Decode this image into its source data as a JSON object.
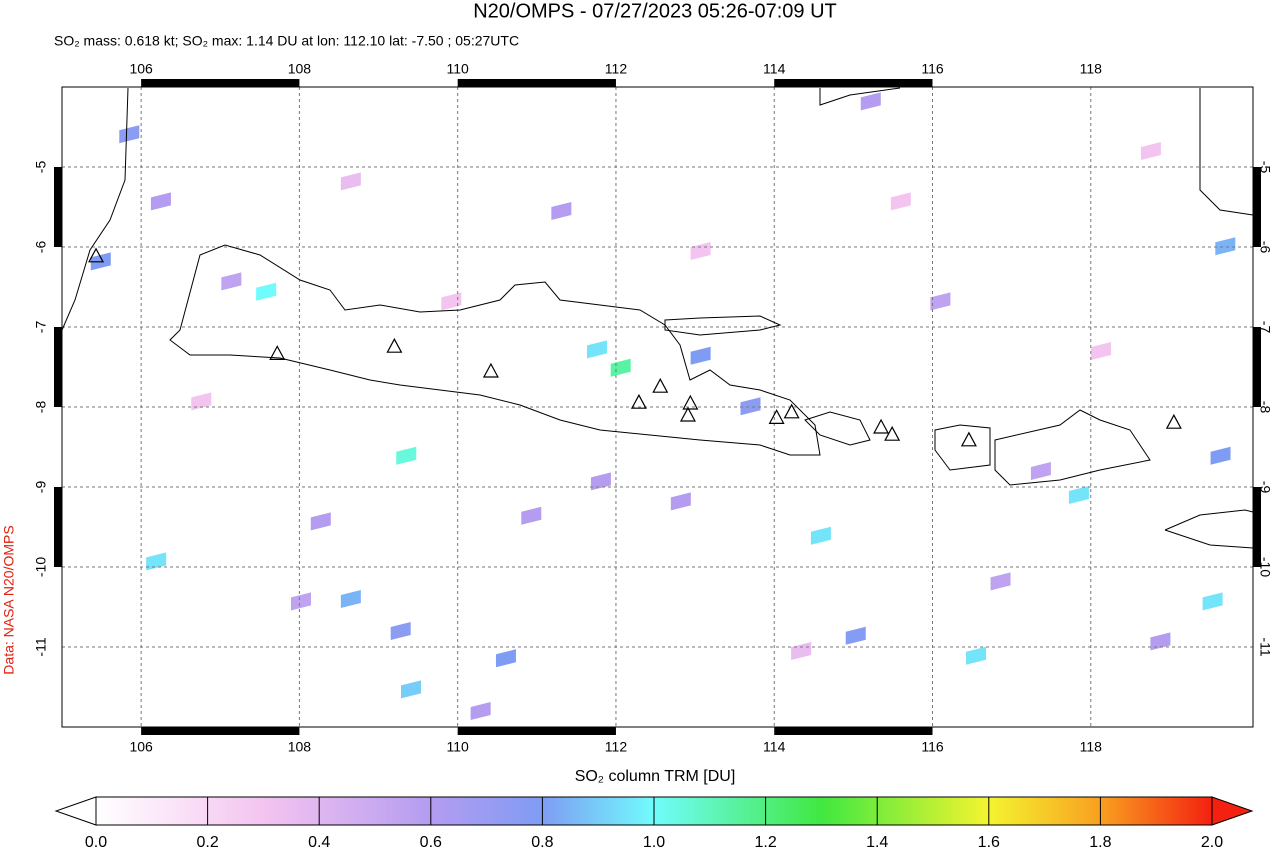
{
  "chart_data": {
    "type": "map",
    "title": "N20/OMPS - 07/27/2023 05:26-07:09 UT",
    "subtitle": "SO₂ mass: 0.618 kt; SO₂ max: 1.14 DU at lon: 112.10 lat: -7.50 ; 05:27UTC",
    "side_label": "Data: NASA N20/OMPS",
    "colorbar_label": "SO₂ column TRM [DU]",
    "xlim": [
      105,
      120.05
    ],
    "ylim": [
      -12,
      -4
    ],
    "xticks": [
      106,
      108,
      110,
      112,
      114,
      116,
      118
    ],
    "yticks": [
      -5,
      -6,
      -7,
      -8,
      -9,
      -10,
      -11
    ],
    "grid": true,
    "colorbar_lim": [
      0,
      2
    ],
    "colorbar_ticks": [
      {
        "value": 0,
        "label": "0.0"
      },
      {
        "value": 0.2,
        "label": "0.2"
      },
      {
        "value": 0.4,
        "label": "0.4"
      },
      {
        "value": 0.6,
        "label": "0.6"
      },
      {
        "value": 0.8,
        "label": "0.8"
      },
      {
        "value": 1,
        "label": "1.0"
      },
      {
        "value": 1.2,
        "label": "1.2"
      },
      {
        "value": 1.4,
        "label": "1.4"
      },
      {
        "value": 1.6,
        "label": "1.6"
      },
      {
        "value": 1.8,
        "label": "1.8"
      },
      {
        "value": 2,
        "label": "2.0"
      }
    ],
    "colorscale": [
      {
        "value": 0,
        "color": "#ffffff"
      },
      {
        "value": 0.3,
        "color": "#f4c4f0"
      },
      {
        "value": 0.6,
        "color": "#b49cf0"
      },
      {
        "value": 0.8,
        "color": "#7f9cf4"
      },
      {
        "value": 1,
        "color": "#70fcfc"
      },
      {
        "value": 1.3,
        "color": "#40e840"
      },
      {
        "value": 1.6,
        "color": "#f4f430"
      },
      {
        "value": 1.8,
        "color": "#f8a020"
      },
      {
        "value": 2,
        "color": "#f42010"
      }
    ],
    "pixels": {
      "lon": [
        107.58,
        109.35,
        112.06,
        111.76,
        106.19,
        108.65,
        109.41,
        110.61,
        114.59,
        116.55,
        117.85,
        119.54,
        105.85,
        105.49,
        109.28,
        113.07,
        113.7,
        115.03,
        119.7,
        119.64,
        106.25,
        107.14,
        108.27,
        110.29,
        110.93,
        111.31,
        115.22,
        117.37,
        118.88,
        108.02,
        111.81,
        112.82,
        116.1,
        116.86,
        106.76,
        109.92,
        113.07,
        115.6,
        118.13,
        108.65,
        114.34,
        118.76
      ],
      "lat": [
        -6.56,
        -8.61,
        -7.51,
        -7.28,
        -9.93,
        -10.4,
        -11.53,
        -11.14,
        -9.61,
        -11.11,
        -9.1,
        -10.43,
        -4.59,
        -6.18,
        -10.8,
        -7.36,
        -7.99,
        -10.86,
        -5.99,
        -8.61,
        -5.43,
        -6.43,
        -9.43,
        -11.8,
        -9.36,
        -5.55,
        -4.18,
        -8.8,
        -10.93,
        -10.43,
        -8.93,
        -9.18,
        -6.68,
        -10.18,
        -7.93,
        -6.68,
        -6.05,
        -5.43,
        -7.3,
        -5.18,
        -11.05,
        -4.8
      ],
      "values": [
        1.0,
        1.05,
        1.14,
        0.95,
        0.95,
        0.85,
        0.9,
        0.8,
        0.95,
        0.95,
        0.95,
        0.95,
        0.75,
        0.8,
        0.75,
        0.8,
        0.75,
        0.78,
        0.85,
        0.8,
        0.6,
        0.55,
        0.6,
        0.6,
        0.6,
        0.6,
        0.6,
        0.55,
        0.6,
        0.55,
        0.6,
        0.6,
        0.55,
        0.55,
        0.3,
        0.3,
        0.3,
        0.3,
        0.3,
        0.35,
        0.35,
        0.3
      ]
    },
    "volcanoes": {
      "lon": [
        105.43,
        107.72,
        109.2,
        110.42,
        112.29,
        112.56,
        112.94,
        112.91,
        114.03,
        114.22,
        115.35,
        115.49,
        116.46,
        119.05
      ],
      "lat": [
        -6.11,
        -7.33,
        -7.24,
        -7.55,
        -7.94,
        -7.74,
        -7.95,
        -8.1,
        -8.13,
        -8.06,
        -8.25,
        -8.34,
        -8.41,
        -8.19
      ]
    }
  }
}
